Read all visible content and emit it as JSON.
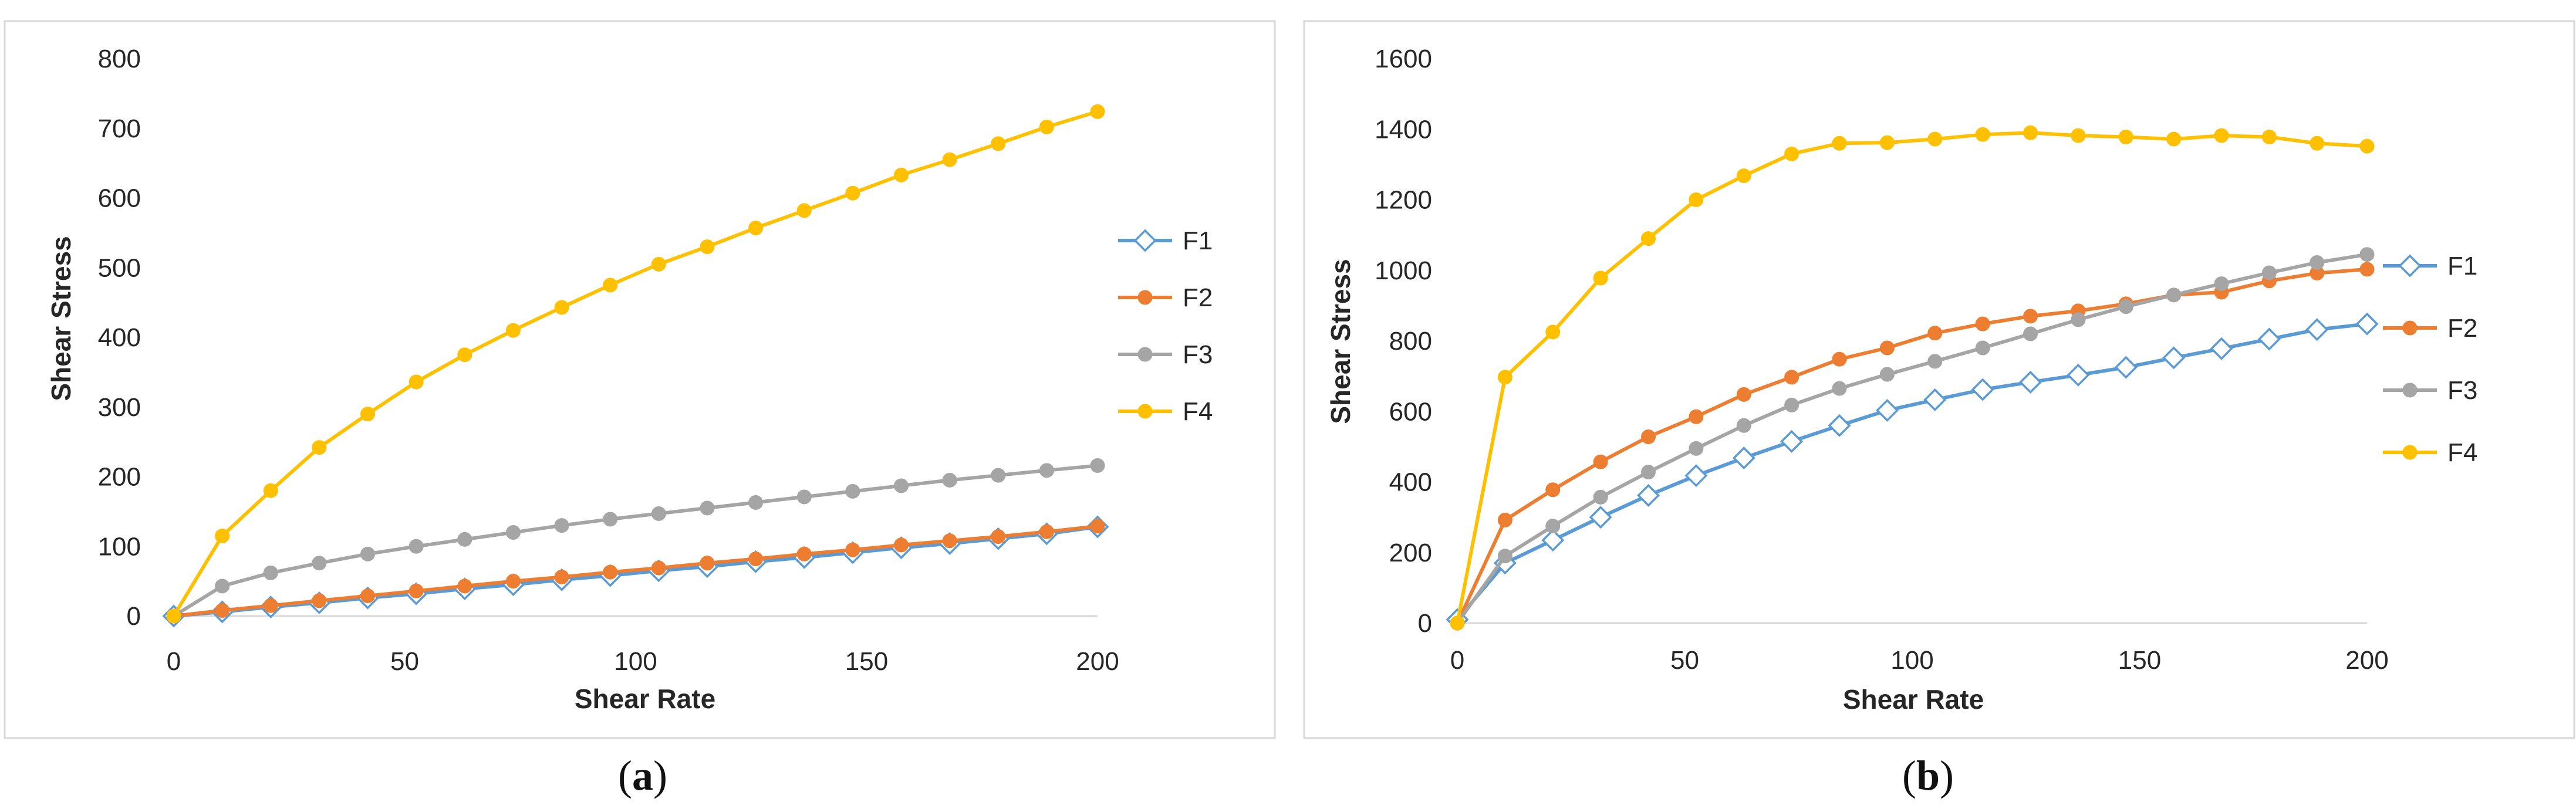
{
  "chart_data": [
    {
      "type": "line",
      "panel_label_open": "(",
      "panel_label_letter": "a",
      "panel_label_close": ")",
      "xlabel": "Shear Rate",
      "ylabel": "Shear Stress",
      "xlim": [
        0,
        200
      ],
      "ylim": [
        0,
        800
      ],
      "xticks": [
        "0",
        "50",
        "100",
        "150",
        "200"
      ],
      "yticks": [
        "0",
        "100",
        "200",
        "300",
        "400",
        "500",
        "600",
        "700",
        "800"
      ],
      "x": [
        0,
        10.5,
        21,
        31.5,
        42,
        52.5,
        63,
        73.5,
        84,
        94.5,
        105,
        115.5,
        126,
        136.5,
        147,
        157.5,
        168,
        178.5,
        189,
        200
      ],
      "series": [
        {
          "name": "F1",
          "color": "#5B9BD5",
          "marker": "diamond",
          "values": [
            0,
            6,
            13,
            19,
            26,
            32,
            39,
            45,
            52,
            58,
            65,
            71,
            78,
            84,
            91,
            98,
            104,
            111,
            118,
            128
          ]
        },
        {
          "name": "F2",
          "color": "#ED7D31",
          "marker": "circle",
          "values": [
            0,
            8,
            15,
            22,
            29,
            36,
            43,
            50,
            56,
            63,
            69,
            76,
            82,
            89,
            95,
            102,
            108,
            114,
            121,
            129
          ]
        },
        {
          "name": "F3",
          "color": "#A5A5A5",
          "marker": "circle",
          "values": [
            0,
            43,
            62,
            76,
            89,
            100,
            110,
            120,
            130,
            139,
            147,
            155,
            163,
            171,
            179,
            187,
            195,
            202,
            209,
            216
          ]
        },
        {
          "name": "F4",
          "color": "#FFC000",
          "marker": "circle",
          "values": [
            0,
            115,
            180,
            242,
            290,
            336,
            375,
            410,
            443,
            475,
            505,
            530,
            557,
            582,
            607,
            633,
            655,
            678,
            702,
            724
          ]
        }
      ]
    },
    {
      "type": "line",
      "panel_label_open": "(",
      "panel_label_letter": "b",
      "panel_label_close": ")",
      "xlabel": "Shear Rate",
      "ylabel": "Shear Stress",
      "xlim": [
        0,
        200
      ],
      "ylim": [
        0,
        1600
      ],
      "xticks": [
        "0",
        "50",
        "100",
        "150",
        "200"
      ],
      "yticks": [
        "0",
        "200",
        "400",
        "600",
        "800",
        "1000",
        "1200",
        "1400",
        "1600"
      ],
      "x": [
        0,
        10.5,
        21,
        31.5,
        42,
        52.5,
        63,
        73.5,
        84,
        94.5,
        105,
        115.5,
        126,
        136.5,
        147,
        157.5,
        168,
        178.5,
        189,
        200
      ],
      "series": [
        {
          "name": "F1",
          "color": "#5B9BD5",
          "marker": "diamond",
          "values": [
            10,
            170,
            235,
            300,
            362,
            418,
            468,
            515,
            560,
            603,
            633,
            662,
            683,
            703,
            725,
            752,
            778,
            805,
            832,
            848
          ]
        },
        {
          "name": "F2",
          "color": "#ED7D31",
          "marker": "circle",
          "values": [
            0,
            292,
            378,
            457,
            528,
            585,
            648,
            697,
            748,
            780,
            822,
            848,
            870,
            885,
            905,
            930,
            938,
            970,
            992,
            1003
          ]
        },
        {
          "name": "F3",
          "color": "#A5A5A5",
          "marker": "circle",
          "values": [
            0,
            190,
            275,
            357,
            428,
            495,
            560,
            618,
            665,
            705,
            742,
            780,
            820,
            860,
            897,
            930,
            962,
            993,
            1022,
            1045
          ]
        },
        {
          "name": "F4",
          "color": "#FFC000",
          "marker": "circle",
          "values": [
            0,
            697,
            825,
            978,
            1090,
            1200,
            1268,
            1330,
            1360,
            1362,
            1372,
            1385,
            1390,
            1382,
            1378,
            1372,
            1382,
            1378,
            1360,
            1352
          ]
        }
      ]
    }
  ]
}
